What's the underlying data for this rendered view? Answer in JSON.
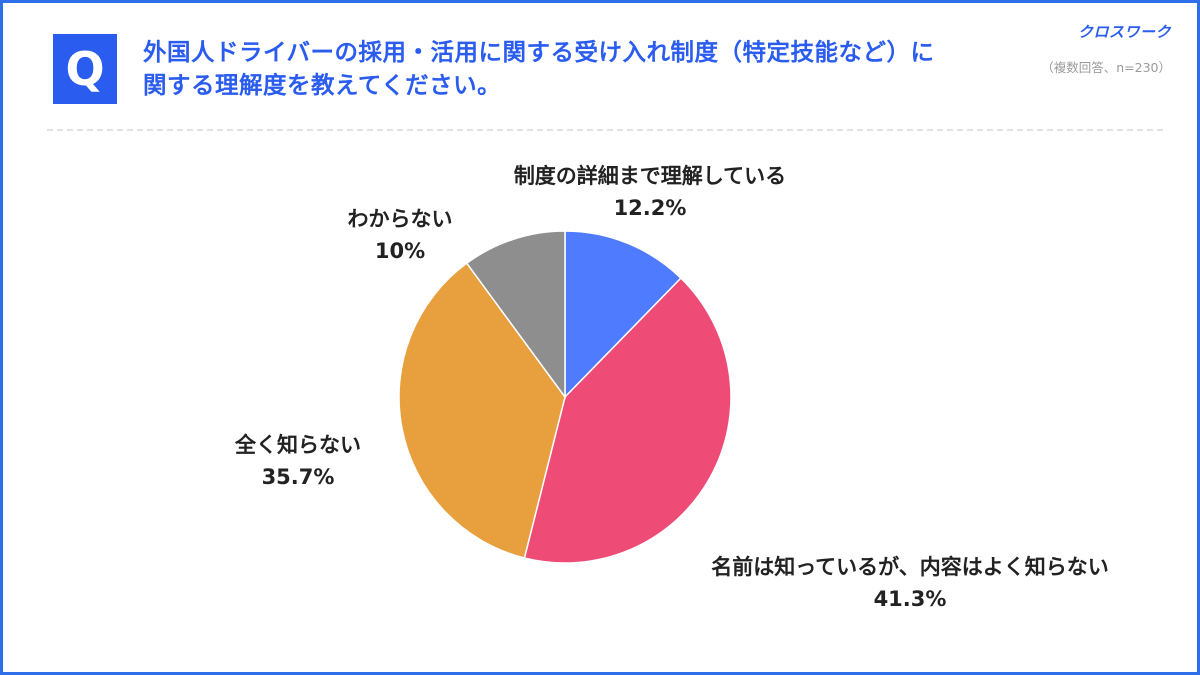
{
  "header": {
    "badge": "Q",
    "question_line1": "外国人ドライバーの採用・活用に関する受け入れ制度（特定技能など）に",
    "question_line2": "関する理解度を教えてください。",
    "brand": "クロスワーク",
    "sample_note": "（複数回答、n=230）"
  },
  "colors": {
    "accent": "#2a5cf0",
    "frame": "#2f6fea"
  },
  "chart_data": {
    "type": "pie",
    "start": "12 o'clock",
    "direction": "clockwise",
    "slices": [
      {
        "label": "制度の詳細まで理解している",
        "value": 12.2,
        "value_label": "12.2%",
        "color": "#4f7bff"
      },
      {
        "label": "名前は知っているが、内容はよく知らない",
        "value": 41.3,
        "value_label": "41.3%",
        "color": "#ee4c76"
      },
      {
        "label": "全く知らない",
        "value": 35.7,
        "value_label": "35.7%",
        "color": "#e89f3e"
      },
      {
        "label": "わからない",
        "value": 10,
        "value_label": "10%",
        "color": "#8e8e8e"
      }
    ]
  }
}
